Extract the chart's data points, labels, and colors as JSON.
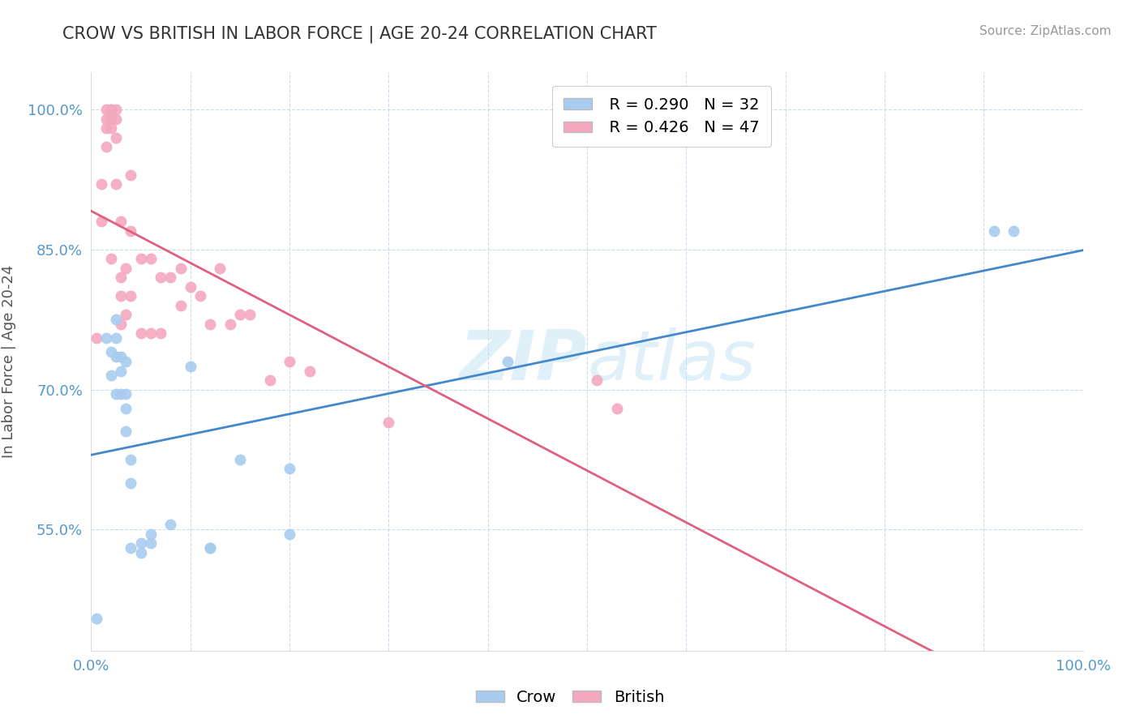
{
  "title": "CROW VS BRITISH IN LABOR FORCE | AGE 20-24 CORRELATION CHART",
  "source": "Source: ZipAtlas.com",
  "ylabel": "In Labor Force | Age 20-24",
  "xlim": [
    0.0,
    1.0
  ],
  "ylim": [
    0.42,
    1.04
  ],
  "yticks": [
    0.55,
    0.7,
    0.85,
    1.0
  ],
  "ytick_labels": [
    "55.0%",
    "70.0%",
    "85.0%",
    "100.0%"
  ],
  "crow_R": 0.29,
  "crow_N": 32,
  "british_R": 0.426,
  "british_N": 47,
  "crow_color": "#a8ccee",
  "british_color": "#f4a8c0",
  "crow_line_color": "#4488cc",
  "british_line_color": "#e06080",
  "crow_x": [
    0.005,
    0.015,
    0.02,
    0.02,
    0.025,
    0.025,
    0.025,
    0.025,
    0.03,
    0.03,
    0.03,
    0.035,
    0.035,
    0.035,
    0.035,
    0.04,
    0.04,
    0.04,
    0.05,
    0.05,
    0.06,
    0.06,
    0.08,
    0.1,
    0.12,
    0.12,
    0.15,
    0.2,
    0.2,
    0.42,
    0.91,
    0.93
  ],
  "crow_y": [
    0.455,
    0.755,
    0.74,
    0.715,
    0.775,
    0.755,
    0.735,
    0.695,
    0.695,
    0.735,
    0.72,
    0.73,
    0.695,
    0.68,
    0.655,
    0.625,
    0.6,
    0.53,
    0.535,
    0.525,
    0.545,
    0.535,
    0.555,
    0.725,
    0.53,
    0.53,
    0.625,
    0.615,
    0.545,
    0.73,
    0.87,
    0.87
  ],
  "british_x": [
    0.005,
    0.01,
    0.01,
    0.015,
    0.015,
    0.015,
    0.015,
    0.02,
    0.02,
    0.02,
    0.02,
    0.02,
    0.025,
    0.025,
    0.025,
    0.025,
    0.03,
    0.03,
    0.03,
    0.03,
    0.035,
    0.035,
    0.04,
    0.04,
    0.04,
    0.05,
    0.05,
    0.06,
    0.06,
    0.07,
    0.07,
    0.08,
    0.09,
    0.09,
    0.1,
    0.11,
    0.12,
    0.13,
    0.14,
    0.15,
    0.16,
    0.18,
    0.2,
    0.22,
    0.3,
    0.51,
    0.53
  ],
  "british_y": [
    0.755,
    0.92,
    0.88,
    1.0,
    0.99,
    0.98,
    0.96,
    1.0,
    1.0,
    0.99,
    0.98,
    0.84,
    1.0,
    0.99,
    0.97,
    0.92,
    0.88,
    0.82,
    0.8,
    0.77,
    0.83,
    0.78,
    0.93,
    0.87,
    0.8,
    0.84,
    0.76,
    0.84,
    0.76,
    0.82,
    0.76,
    0.82,
    0.83,
    0.79,
    0.81,
    0.8,
    0.77,
    0.83,
    0.77,
    0.78,
    0.78,
    0.71,
    0.73,
    0.72,
    0.665,
    0.71,
    0.68
  ]
}
